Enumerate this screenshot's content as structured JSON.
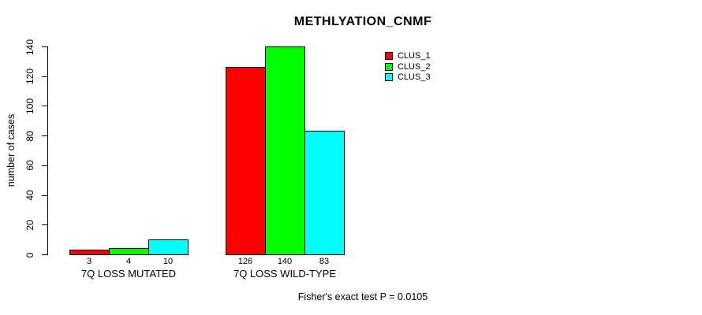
{
  "title": "METHLYATION_CNMF",
  "footer": "Fisher's exact test P = 0.0105",
  "chart_data": {
    "type": "bar",
    "title": "METHLYATION_CNMF",
    "ylabel": "number of cases",
    "xlabel": "",
    "categories": [
      "7Q LOSS MUTATED",
      "7Q LOSS WILD-TYPE"
    ],
    "series": [
      {
        "name": "CLUS_1",
        "color": "#ff0000",
        "values": [
          3,
          126
        ]
      },
      {
        "name": "CLUS_2",
        "color": "#00ff00",
        "values": [
          4,
          140
        ]
      },
      {
        "name": "CLUS_3",
        "color": "#00ffff",
        "values": [
          10,
          83
        ]
      }
    ],
    "bar_value_labels": [
      [
        3,
        4,
        10
      ],
      [
        126,
        140,
        83
      ]
    ],
    "ylim": [
      0,
      140
    ],
    "yticks": [
      0,
      20,
      40,
      60,
      80,
      100,
      120,
      140
    ],
    "grid": false,
    "legend_position": "top-right",
    "annotation": "Fisher's exact test P = 0.0105"
  }
}
